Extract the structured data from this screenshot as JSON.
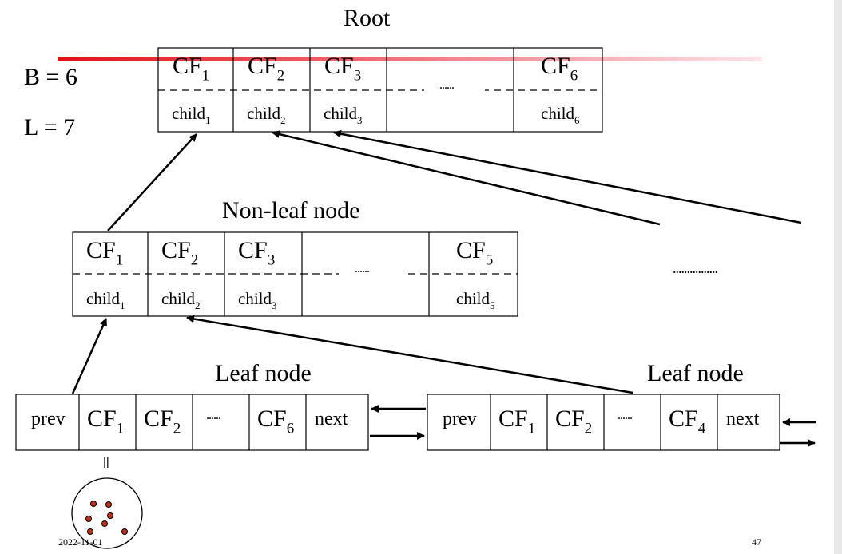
{
  "params": {
    "b": "B = 6",
    "l": "L = 7"
  },
  "root": {
    "title": "Root",
    "entries": [
      {
        "cf": "CF",
        "cf_sub": "1",
        "child": "child",
        "child_sub": "1"
      },
      {
        "cf": "CF",
        "cf_sub": "2",
        "child": "child",
        "child_sub": "2"
      },
      {
        "cf": "CF",
        "cf_sub": "3",
        "child": "child",
        "child_sub": "3"
      },
      {
        "dots": "......"
      },
      {
        "cf": "CF",
        "cf_sub": "6",
        "child": "child",
        "child_sub": "6"
      }
    ]
  },
  "nonleaf": {
    "title": "Non-leaf node",
    "entries": [
      {
        "cf": "CF",
        "cf_sub": "1",
        "child": "child",
        "child_sub": "1"
      },
      {
        "cf": "CF",
        "cf_sub": "2",
        "child": "child",
        "child_sub": "2"
      },
      {
        "cf": "CF",
        "cf_sub": "3",
        "child": "child",
        "child_sub": "3"
      },
      {
        "dots": "......"
      },
      {
        "cf": "CF",
        "cf_sub": "5",
        "child": "child",
        "child_sub": "5"
      }
    ],
    "right_dots": "................"
  },
  "leaf_left": {
    "title": "Leaf node",
    "prev": "prev",
    "entries": [
      {
        "cf": "CF",
        "cf_sub": "1"
      },
      {
        "cf": "CF",
        "cf_sub": "2"
      },
      {
        "dots": "......"
      },
      {
        "cf": "CF",
        "cf_sub": "6"
      }
    ],
    "next": "next"
  },
  "leaf_right": {
    "title": "Leaf node",
    "prev": "prev",
    "entries": [
      {
        "cf": "CF",
        "cf_sub": "1"
      },
      {
        "cf": "CF",
        "cf_sub": "2"
      },
      {
        "dots": "......"
      },
      {
        "cf": "CF",
        "cf_sub": "4"
      }
    ],
    "next": "next"
  },
  "equals_mark": "||",
  "footer": {
    "date": "2022-11-01",
    "page": "47"
  },
  "colors": {
    "accent_line": "#e8202a",
    "point": "#c0301c",
    "stroke": "#000000"
  }
}
